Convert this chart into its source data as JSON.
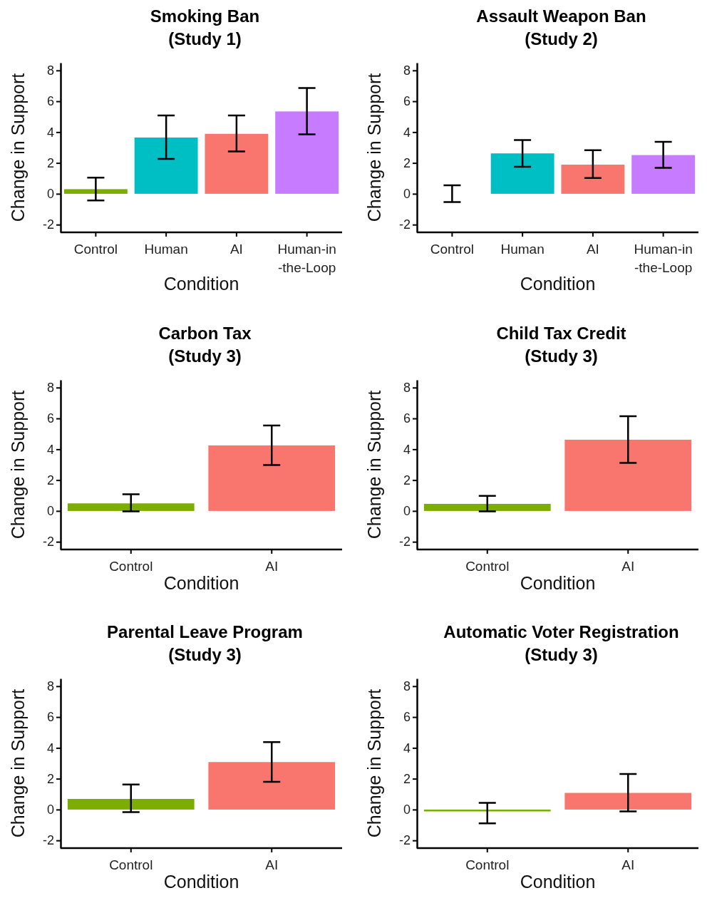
{
  "chart_data": [
    {
      "type": "bar",
      "title": "Smoking Ban\n(Study 1)",
      "xlabel": "Condition",
      "ylabel": "Change in Support",
      "categories": [
        "Control",
        "Human",
        "AI",
        "Human-in\n-the-Loop"
      ],
      "values": [
        0.3,
        3.65,
        3.89,
        5.34
      ],
      "colors": [
        "#7cae00",
        "#00bfc4",
        "#f8766d",
        "#c77cff"
      ],
      "errors": [
        [
          -0.43,
          1.05
        ],
        [
          2.26,
          5.08
        ],
        [
          2.75,
          5.08
        ],
        [
          3.85,
          6.86
        ]
      ],
      "ylim": [
        -2.5,
        8.5
      ],
      "yticks": [
        -2,
        0,
        2,
        4,
        6,
        8
      ],
      "grid": false
    },
    {
      "type": "bar",
      "title": "Assault Weapon Ban\n(Study 2)",
      "xlabel": "Condition",
      "ylabel": "Change in Support",
      "categories": [
        "Control",
        "Human",
        "AI",
        "Human-in\n-the-Loop"
      ],
      "values": [
        0.0,
        2.62,
        1.89,
        2.51
      ],
      "colors": [
        "#7cae00",
        "#00bfc4",
        "#f8766d",
        "#c77cff"
      ],
      "errors": [
        [
          -0.54,
          0.55
        ],
        [
          1.75,
          3.48
        ],
        [
          1.02,
          2.83
        ],
        [
          1.68,
          3.37
        ]
      ],
      "ylim": [
        -2.5,
        8.5
      ],
      "yticks": [
        -2,
        0,
        2,
        4,
        6,
        8
      ],
      "grid": false
    },
    {
      "type": "bar",
      "title": "Carbon Tax\n(Study 3)",
      "xlabel": "Condition",
      "ylabel": "Change in Support",
      "categories": [
        "Control",
        "AI"
      ],
      "values": [
        0.49,
        4.25
      ],
      "colors": [
        "#7cae00",
        "#f8766d"
      ],
      "errors": [
        [
          -0.03,
          1.08
        ],
        [
          2.98,
          5.54
        ]
      ],
      "ylim": [
        -2.5,
        8.5
      ],
      "yticks": [
        -2,
        0,
        2,
        4,
        6,
        8
      ],
      "grid": false
    },
    {
      "type": "bar",
      "title": "Child Tax Credit\n(Study 3)",
      "xlabel": "Condition",
      "ylabel": "Change in Support",
      "categories": [
        "Control",
        "AI"
      ],
      "values": [
        0.46,
        4.62
      ],
      "colors": [
        "#7cae00",
        "#f8766d"
      ],
      "errors": [
        [
          -0.03,
          0.98
        ],
        [
          3.11,
          6.14
        ]
      ],
      "ylim": [
        -2.5,
        8.5
      ],
      "yticks": [
        -2,
        0,
        2,
        4,
        6,
        8
      ],
      "grid": false
    },
    {
      "type": "bar",
      "title": "Parental Leave Program\n(Study 3)",
      "xlabel": "Condition",
      "ylabel": "Change in Support",
      "categories": [
        "Control",
        "AI"
      ],
      "values": [
        0.69,
        3.08
      ],
      "colors": [
        "#7cae00",
        "#f8766d"
      ],
      "errors": [
        [
          -0.17,
          1.62
        ],
        [
          1.8,
          4.37
        ]
      ],
      "ylim": [
        -2.5,
        8.5
      ],
      "yticks": [
        -2,
        0,
        2,
        4,
        6,
        8
      ],
      "grid": false
    },
    {
      "type": "bar",
      "title": "Automatic Voter Registration\n(Study 3)",
      "xlabel": "Condition",
      "ylabel": "Change in Support",
      "categories": [
        "Control",
        "AI"
      ],
      "values": [
        -0.12,
        1.08
      ],
      "colors": [
        "#7cae00",
        "#f8766d"
      ],
      "errors": [
        [
          -0.89,
          0.43
        ],
        [
          -0.12,
          2.31
        ]
      ],
      "ylim": [
        -2.5,
        8.5
      ],
      "yticks": [
        -2,
        0,
        2,
        4,
        6,
        8
      ],
      "grid": false
    }
  ]
}
